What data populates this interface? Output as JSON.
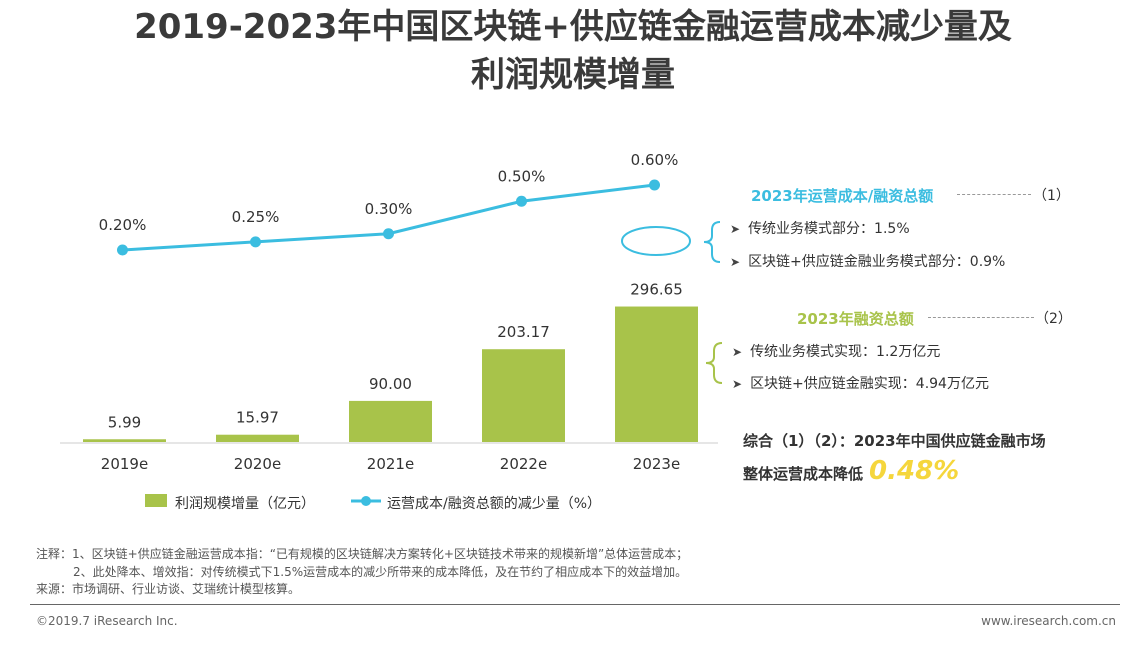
{
  "title": {
    "line1": "2019-2023年中国区块链+供应链金融运营成本减少量及",
    "line2": "利润规模增量"
  },
  "chart_data": {
    "type": "bar",
    "categories": [
      "2019e",
      "2020e",
      "2021e",
      "2022e",
      "2023e"
    ],
    "series": [
      {
        "name": "利润规模增量（亿元）",
        "kind": "bar",
        "values": [
          5.99,
          15.97,
          90.0,
          203.17,
          296.65
        ],
        "labels": [
          "5.99",
          "15.97",
          "90.00",
          "203.17",
          "296.65"
        ],
        "color": "#a8c34a"
      },
      {
        "name": "运营成本/融资总额的减少量（%）",
        "kind": "line",
        "values": [
          0.2,
          0.25,
          0.3,
          0.5,
          0.6
        ],
        "labels": [
          "0.20%",
          "0.25%",
          "0.30%",
          "0.50%",
          "0.60%"
        ],
        "color": "#3bbde0"
      }
    ],
    "bar_ylim": [
      0,
      300
    ],
    "line_ylim": [
      0.2,
      0.6
    ]
  },
  "annotations": {
    "box1": {
      "header": "2023年运营成本/融资总额",
      "number": "（1）",
      "items": [
        "传统业务模式部分：1.5%",
        "区块链+供应链金融业务模式部分：0.9%"
      ],
      "color": "#3bbde0"
    },
    "box2": {
      "header": "2023年融资总额",
      "number": "（2）",
      "items": [
        "传统业务模式实现：1.2万亿元",
        "区块链+供应链金融实现：4.94万亿元"
      ],
      "color": "#a8c34a"
    },
    "summary": {
      "line1": "综合（1）（2）：2023年中国供应链金融市场",
      "line2": "整体运营成本降低",
      "value": "0.48%",
      "value_color": "#f5d63c"
    }
  },
  "notes": {
    "line1": "注释：1、区块链+供应链金融运营成本指：“已有规模的区块链解决方案转化+区块链技术带来的规模新增”总体运营成本；",
    "line2": "2、此处降本、增效指：对传统模式下1.5%运营成本的减少所带来的成本降低，及在节约了相应成本下的效益增加。",
    "line3": "来源：市场调研、行业访谈、艾瑞统计模型核算。"
  },
  "footer": {
    "left": "©2019.7 iResearch Inc.",
    "right": "www.iresearch.com.cn"
  }
}
